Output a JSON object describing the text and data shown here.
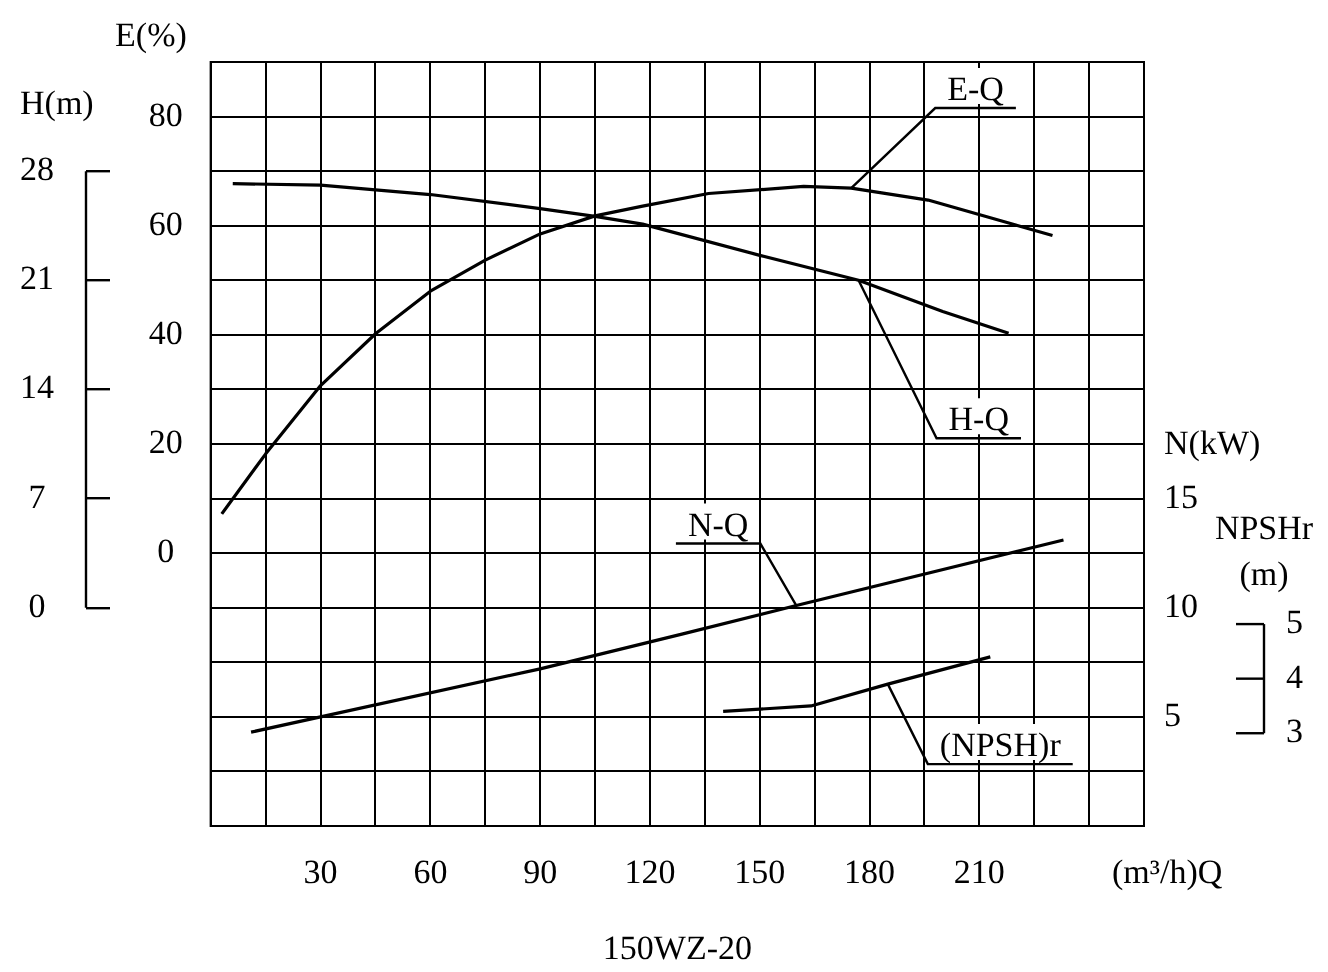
{
  "chart_data": [
    {
      "type": "line",
      "title": "150WZ-20",
      "xlabel": "(m³/h)Q",
      "ylabel": "E(%)",
      "y2label": "H(m)",
      "y3label": "N(kW)",
      "xlim": [
        0,
        255
      ],
      "xticks": [
        {
          "value": 0,
          "label": null
        },
        {
          "value": 15,
          "label": null
        },
        30,
        {
          "value": 45,
          "label": null
        },
        60,
        {
          "value": 75,
          "label": null
        },
        90,
        {
          "value": 105,
          "label": null
        },
        120,
        {
          "value": 135,
          "label": null
        },
        150,
        {
          "value": 165,
          "label": null
        },
        180,
        {
          "value": 195,
          "label": null
        },
        210,
        {
          "value": 225,
          "label": null
        },
        {
          "value": 240,
          "label": null
        },
        {
          "value": 255,
          "label": null
        }
      ],
      "ylim": [
        -50,
        90
      ],
      "yticks": [
        {
          "value": -50,
          "label": null
        },
        {
          "value": -40,
          "label": null
        },
        {
          "value": -30,
          "label": null
        },
        {
          "value": -20,
          "label": null
        },
        {
          "value": -10,
          "label": null
        },
        0,
        {
          "value": 10,
          "label": null
        },
        20,
        {
          "value": 30,
          "label": null
        },
        40,
        {
          "value": 50,
          "label": null
        },
        60,
        {
          "value": 70,
          "label": null
        },
        80,
        {
          "value": 90,
          "label": null
        }
      ],
      "y2lim": [
        -14,
        35
      ],
      "y2ticks": [
        0,
        7,
        14,
        21,
        28
      ],
      "y3lim": [
        0,
        35
      ],
      "y3ticks": [
        5,
        10,
        15
      ],
      "grid": true,
      "legend": false,
      "marker": "none",
      "line_style": "solid",
      "series": [
        {
          "name": "E-Q",
          "color": "#000000",
          "x": [
            3,
            15,
            30,
            45,
            60,
            75,
            90,
            105,
            118,
            136,
            162,
            175,
            196,
            230
          ],
          "values": [
            7.2,
            18.2,
            30.7,
            40.2,
            48,
            53.7,
            58.5,
            61.8,
            63.6,
            65.9,
            67.2,
            66.9,
            64.7,
            58.2
          ]
        },
        {
          "name": "H-Q",
          "color": "#000000",
          "axis": "y2",
          "x": [
            6,
            30,
            60,
            90,
            105,
            118,
            150,
            177,
            200,
            218
          ],
          "values": [
            27.2,
            27.1,
            26.5,
            25.6,
            25.1,
            24.6,
            22.6,
            21.0,
            19.0,
            17.6
          ]
        },
        {
          "name": "N-Q",
          "color": "#000000",
          "axis": "y3",
          "x": [
            11,
            30,
            90,
            129,
            160,
            233
          ],
          "values": [
            4.3,
            5.0,
            7.2,
            8.8,
            10.1,
            13.1
          ]
        }
      ]
    },
    {
      "type": "line",
      "ylabel": "NPSHr (m)",
      "xlim": [
        0,
        255
      ],
      "ylim": [
        1.3,
        15.3
      ],
      "yticks": [
        3,
        4,
        5
      ],
      "tick_labels": "y",
      "legend": false,
      "marker": "none",
      "line_style": "solid",
      "series": [
        {
          "name": "(NPSH)r",
          "color": "#000000",
          "x": [
            140,
            164,
            185,
            213
          ],
          "values": [
            3.4,
            3.5,
            3.9,
            4.4
          ]
        }
      ]
    }
  ]
}
